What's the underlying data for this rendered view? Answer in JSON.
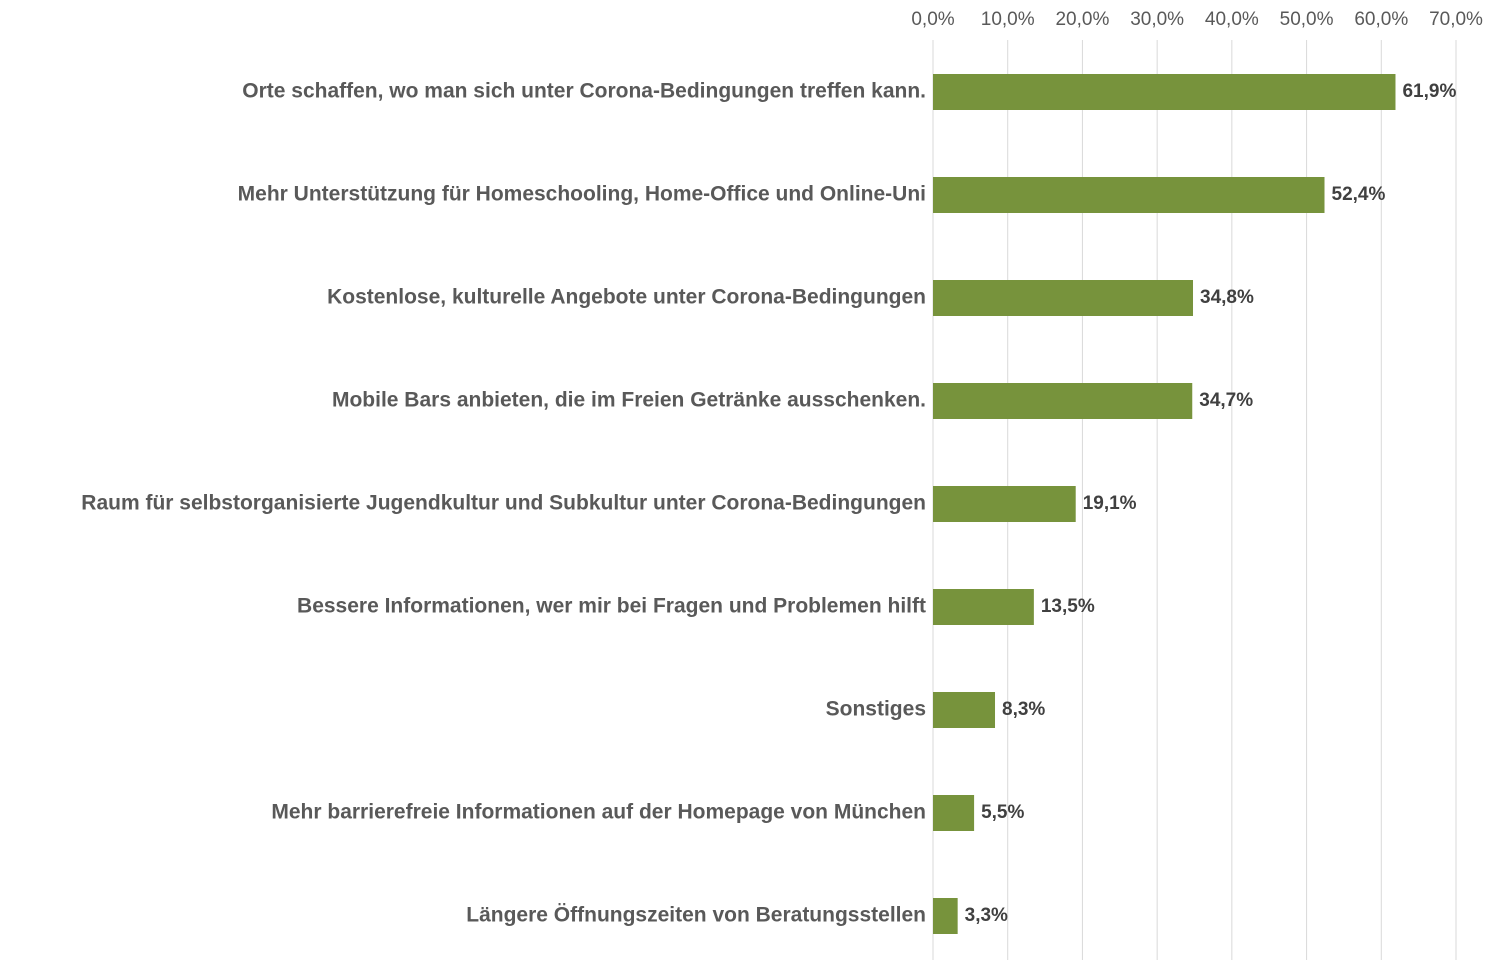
{
  "chart_data": {
    "type": "bar",
    "orientation": "horizontal",
    "color": "#77933c",
    "grid": true,
    "categories": [
      "Orte schaffen, wo man sich unter Corona-Bedingungen treffen kann.",
      "Mehr Unterstützung für Homeschooling, Home-Office und Online-Uni",
      "Kostenlose, kulturelle Angebote unter Corona-Bedingungen",
      "Mobile Bars anbieten, die im Freien Getränke ausschenken.",
      "Raum für selbstorganisierte Jugendkultur und Subkultur unter Corona-Bedingungen",
      "Bessere Informationen, wer mir bei Fragen und Problemen hilft",
      "Sonstiges",
      "Mehr barrierefreie Informationen auf der Homepage von München",
      "Längere Öffnungszeiten von Beratungsstellen"
    ],
    "values": [
      61.9,
      52.4,
      34.8,
      34.7,
      19.1,
      13.5,
      8.3,
      5.5,
      3.3
    ],
    "value_labels": [
      "61,9%",
      "52,4%",
      "34,8%",
      "34,7%",
      "19,1%",
      "13,5%",
      "8,3%",
      "5,5%",
      "3,3%"
    ],
    "xlim": [
      0,
      70
    ],
    "xticks": [
      {
        "value": 0,
        "label": "0,0%"
      },
      {
        "value": 10,
        "label": "10,0%"
      },
      {
        "value": 20,
        "label": "20,0%"
      },
      {
        "value": 30,
        "label": "30,0%"
      },
      {
        "value": 40,
        "label": "40,0%"
      },
      {
        "value": 50,
        "label": "50,0%"
      },
      {
        "value": 60,
        "label": "60,0%"
      },
      {
        "value": 70,
        "label": "70,0%"
      }
    ]
  }
}
